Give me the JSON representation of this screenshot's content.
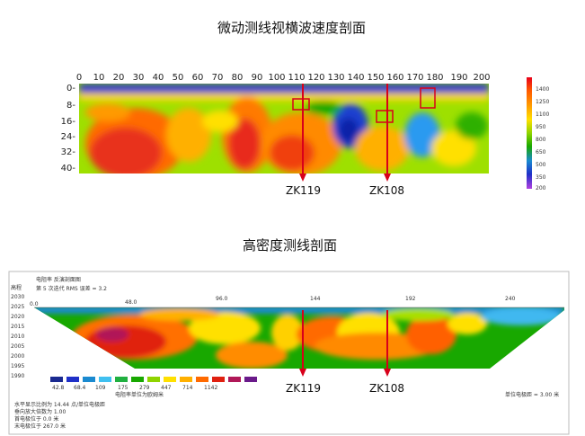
{
  "titles": {
    "seismic": "微动测线视横波速度剖面",
    "resistivity": "高密度测线剖面"
  },
  "seismic": {
    "x_ticks": [
      "0",
      "10",
      "20",
      "30",
      "40",
      "50",
      "60",
      "70",
      "80",
      "90",
      "100",
      "110",
      "120",
      "130",
      "140",
      "150",
      "160",
      "170",
      "180",
      "190",
      "200"
    ],
    "y_ticks": [
      "0-",
      "8-",
      "16-",
      "24-",
      "32-",
      "40-"
    ],
    "colorbar_labels": [
      "1400",
      "1250",
      "1100",
      "950",
      "800",
      "650",
      "500",
      "350",
      "200"
    ],
    "boreholes": [
      "ZK119",
      "ZK108"
    ]
  },
  "resistivity": {
    "header_lines": [
      "电阻率 反演剖面图",
      "第 5 次迭代 RMS 误差 = 3.2"
    ],
    "y_label": "高程",
    "y_ticks": [
      "2030",
      "2025",
      "2020",
      "2015",
      "2010",
      "2005",
      "2000",
      "1995",
      "1990"
    ],
    "top_marks": [
      "0.0",
      "48.0",
      "96.0",
      "144",
      "192",
      "240"
    ],
    "legend_values": [
      "42.8",
      "68.4",
      "109",
      "175",
      "279",
      "447",
      "714",
      "1142"
    ],
    "legend_caption": "电阻率单位为欧姆米",
    "scale_note": "单位电极距 = 3.00 米",
    "footnotes": [
      "水平显示比例为 14.44 点/单位电极距",
      "垂向放大倍数为 1.00",
      "首电极位于 0.0 米",
      "末电极位于 267.0 米"
    ],
    "boreholes": [
      "ZK119",
      "ZK108"
    ]
  },
  "colors": {
    "marker_red": "#d8001a",
    "background": "#ffffff"
  }
}
